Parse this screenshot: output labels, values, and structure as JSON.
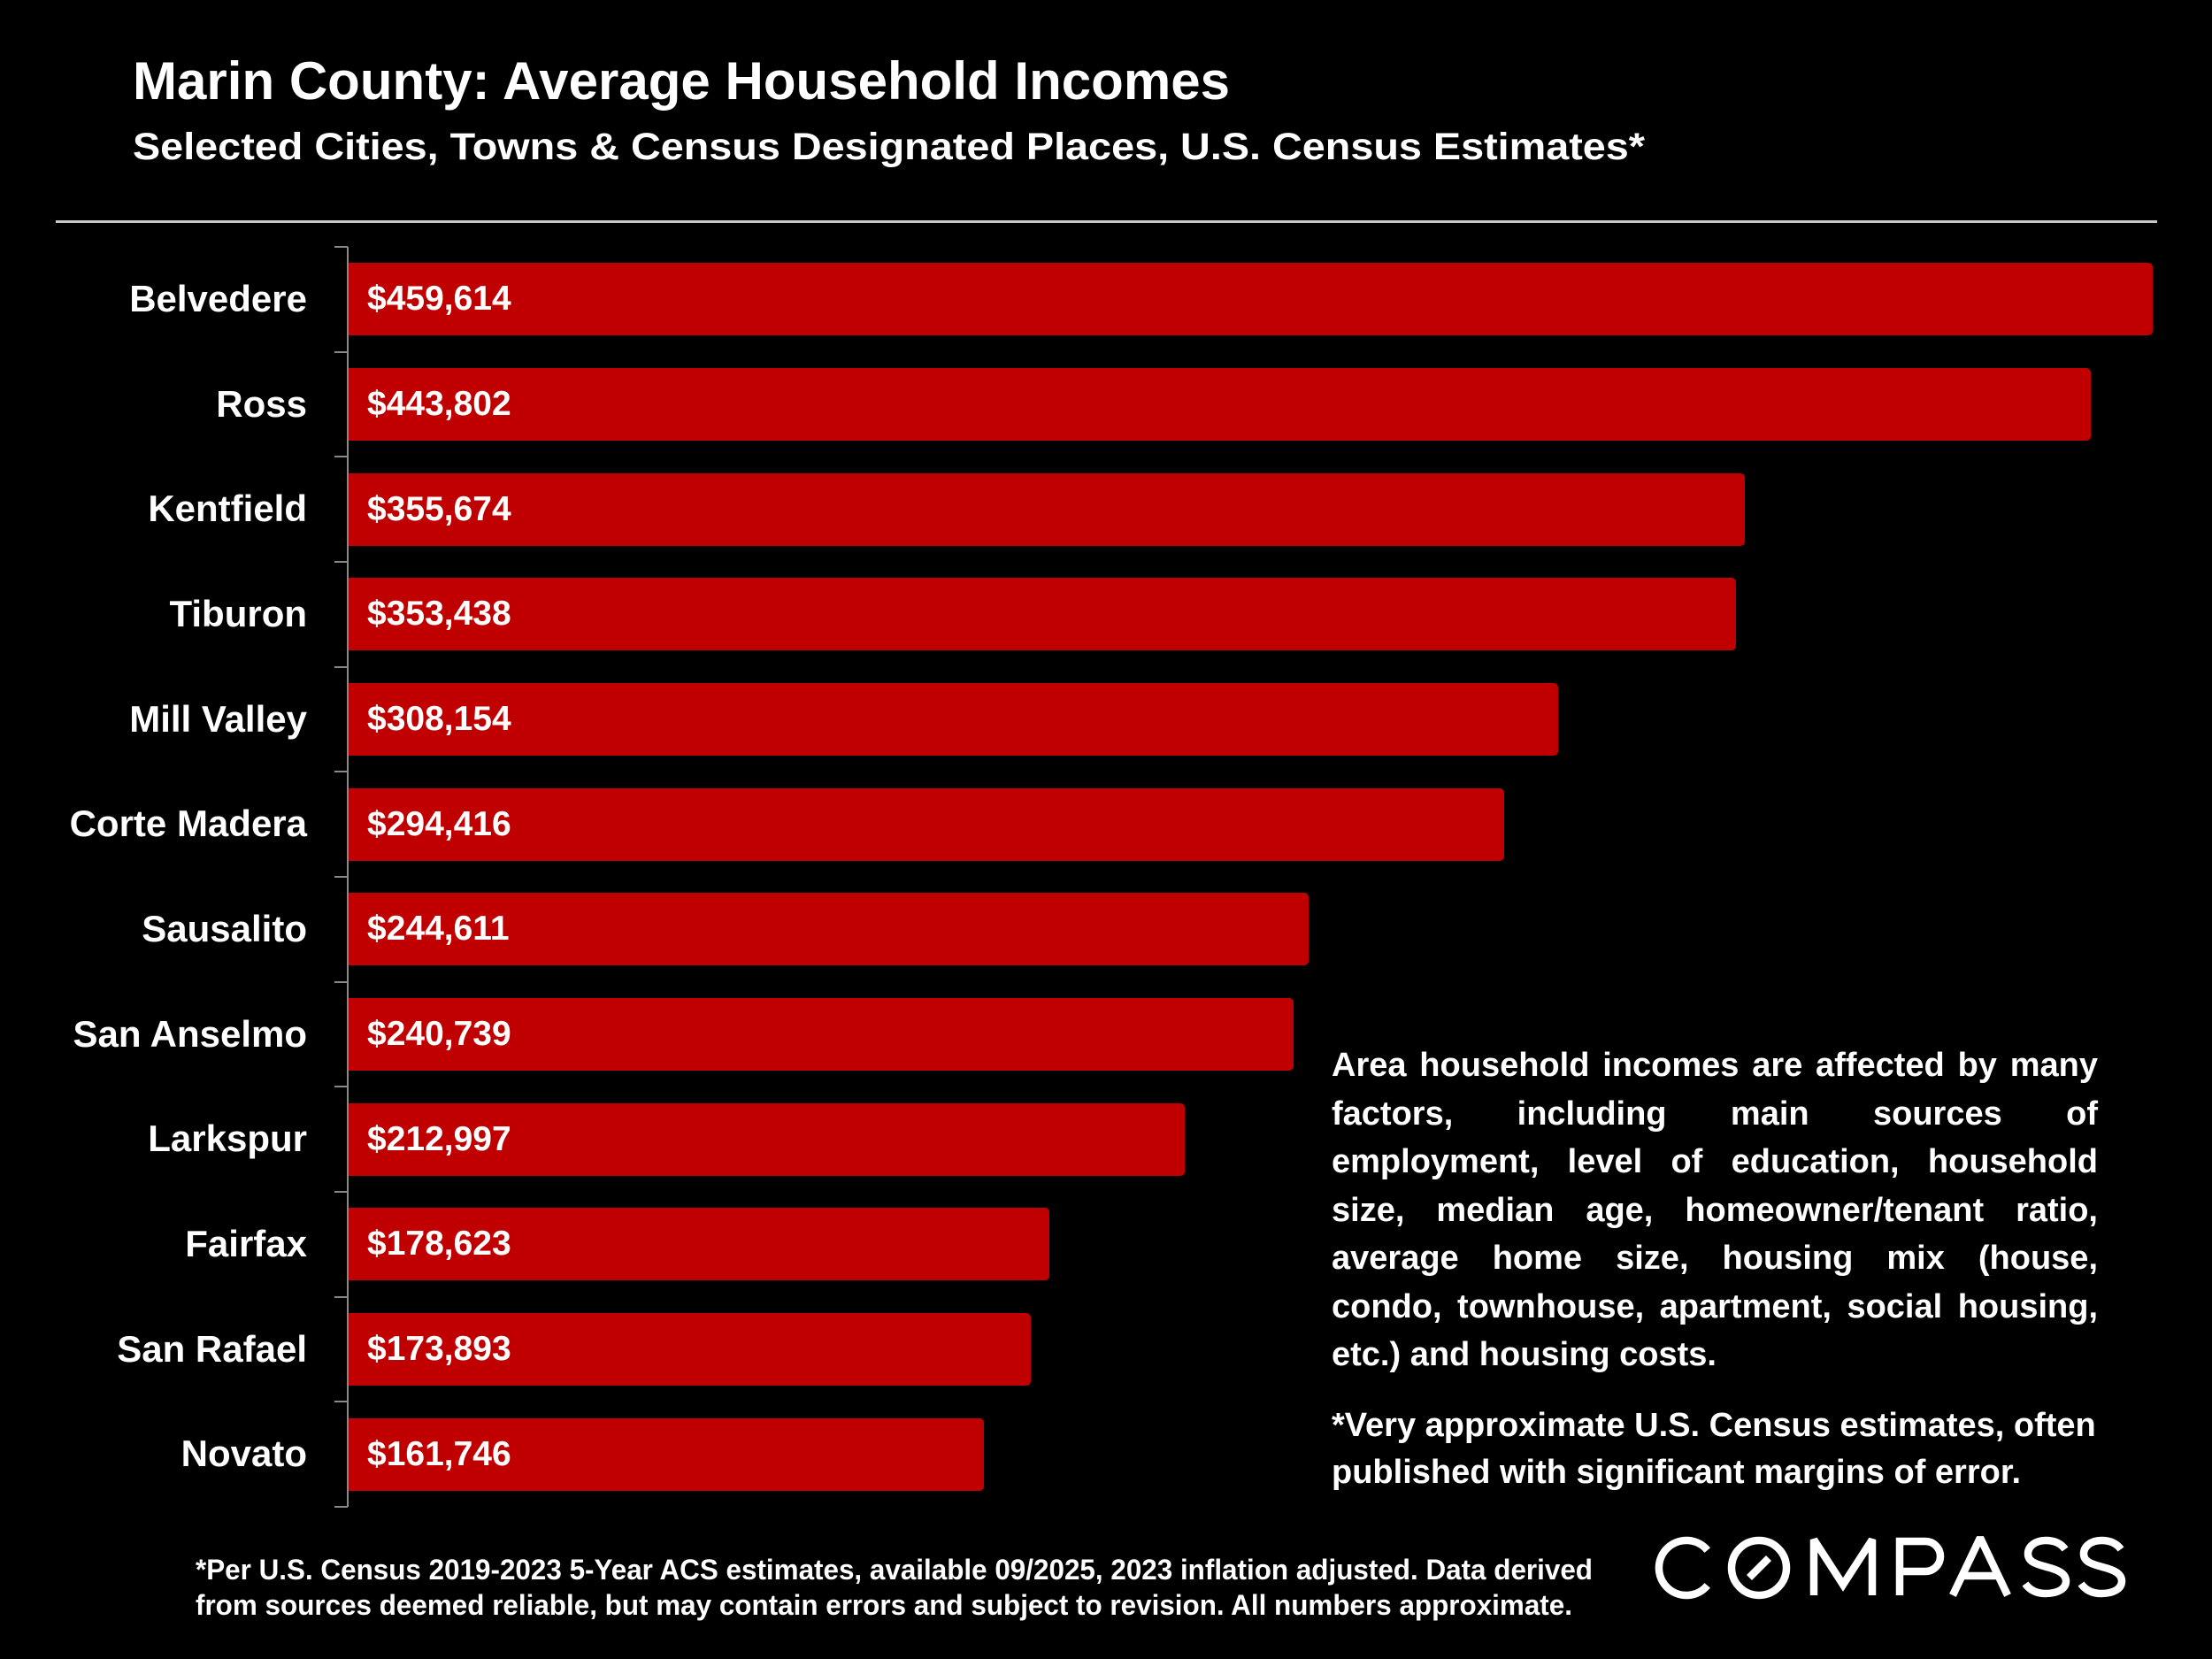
{
  "chart_data": {
    "type": "bar",
    "orientation": "horizontal",
    "title": "Marin County: Average Household Incomes",
    "subtitle": "Selected Cities, Towns & Census Designated Places, U.S. Census Estimates*",
    "xlabel": "",
    "ylabel": "",
    "x_axis_visible": false,
    "grid": false,
    "legend": "none",
    "categories": [
      "Belvedere",
      "Ross",
      "Kentfield",
      "Tiburon",
      "Mill Valley",
      "Corte Madera",
      "Sausalito",
      "San Anselmo",
      "Larkspur",
      "Fairfax",
      "San Rafael",
      "Novato"
    ],
    "values": [
      459614,
      443802,
      355674,
      353438,
      308154,
      294416,
      244611,
      240739,
      212997,
      178623,
      173893,
      161746
    ],
    "value_labels": [
      "$459,614",
      "$443,802",
      "$355,674",
      "$353,438",
      "$308,154",
      "$294,416",
      "$244,611",
      "$240,739",
      "$212,997",
      "$178,623",
      "$173,893",
      "$161,746"
    ],
    "xlim": [
      0,
      459614
    ]
  },
  "description": {
    "lines": [
      "Area household incomes are affected by many",
      "factors, including main sources of",
      "employment, level of education, household",
      "size, median age, homeowner/tenant ratio,",
      "average home size, housing mix (house,",
      "condo, townhouse, apartment, social housing,",
      "etc.) and housing costs."
    ]
  },
  "note": {
    "lines": [
      "*Very approximate U.S. Census estimates, often",
      "published with significant margins of error."
    ]
  },
  "footer": {
    "lines": [
      "*Per U.S. Census 2019-2023 5-Year ACS estimates, available 09/2025, 2023 inflation adjusted. Data derived",
      "from sources deemed reliable, but may contain errors and subject to revision. All numbers approximate."
    ]
  },
  "logo": {
    "text": "COMPASS"
  },
  "colors": {
    "background": "#000000",
    "text": "#FFFFFF",
    "bar": "#C00000",
    "axis": "#898989",
    "separator": "#C8C8C8"
  }
}
